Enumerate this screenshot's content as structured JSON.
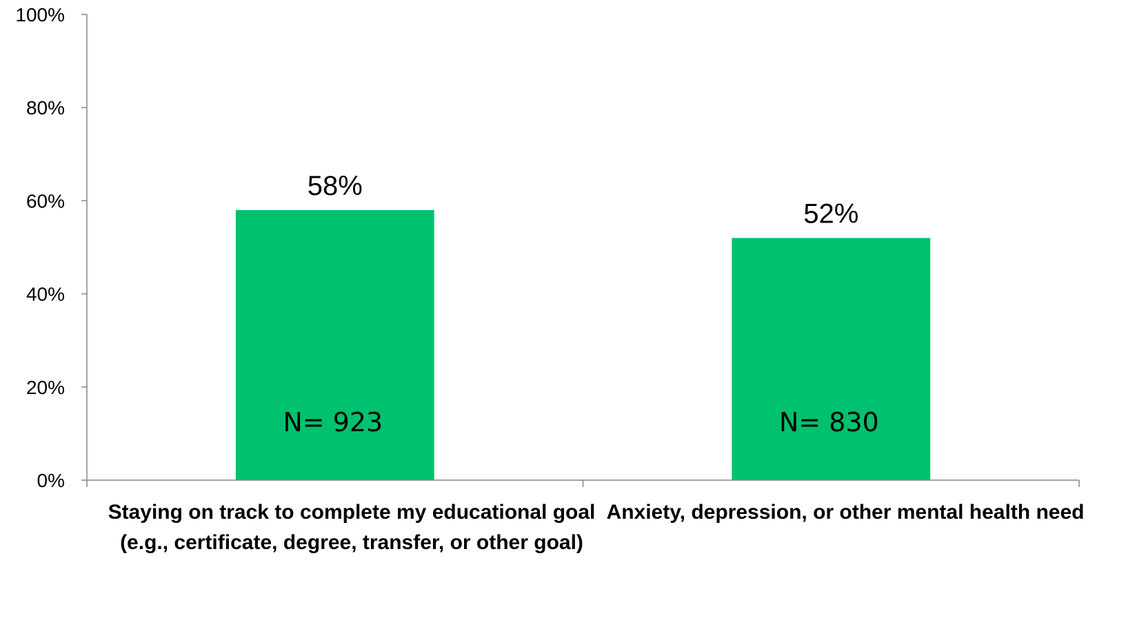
{
  "chart_data": {
    "type": "bar",
    "categories": [
      "Staying on track to complete my educational goal (e.g., certificate, degree, transfer, or other goal)",
      "Anxiety, depression, or other mental health need"
    ],
    "values": [
      58,
      52
    ],
    "value_labels": [
      "58%",
      "52%"
    ],
    "n_labels": [
      "N= 923",
      "N= 830"
    ],
    "ylim": [
      0,
      100
    ],
    "yticks": [
      0,
      20,
      40,
      60,
      80,
      100
    ],
    "ytick_labels": [
      "0%",
      "20%",
      "40%",
      "60%",
      "80%",
      "100%"
    ],
    "grid": false,
    "legend": "none",
    "bar_color": "#00C16E"
  }
}
